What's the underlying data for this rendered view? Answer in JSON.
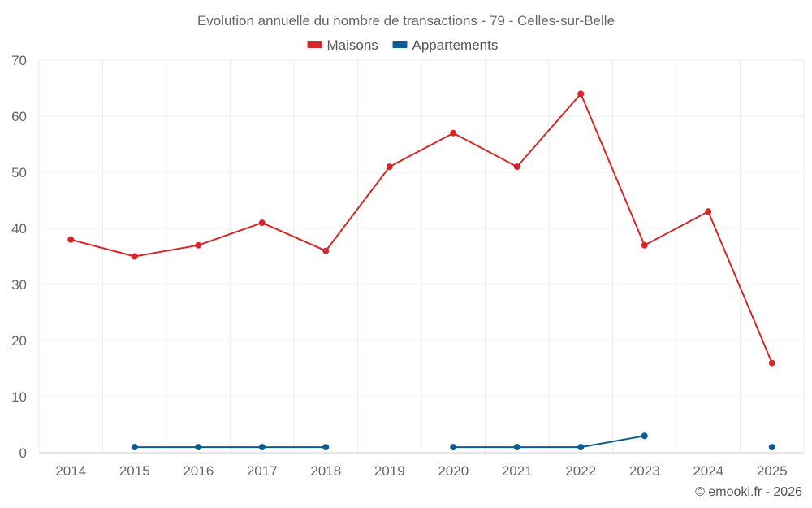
{
  "chart_data": {
    "type": "line",
    "title": "Evolution annuelle du nombre de transactions - 79 - Celles-sur-Belle",
    "categories": [
      "2014",
      "2015",
      "2016",
      "2017",
      "2018",
      "2019",
      "2020",
      "2021",
      "2022",
      "2023",
      "2024",
      "2025"
    ],
    "series": [
      {
        "name": "Maisons",
        "color": "#d62728",
        "values": [
          38,
          35,
          37,
          41,
          36,
          51,
          57,
          51,
          64,
          37,
          43,
          16
        ]
      },
      {
        "name": "Appartements",
        "color": "#0b5c92",
        "values": [
          null,
          1,
          1,
          1,
          1,
          null,
          1,
          1,
          1,
          3,
          null,
          1
        ]
      }
    ],
    "ylim": [
      0,
      70
    ],
    "yticks": [
      0,
      10,
      20,
      30,
      40,
      50,
      60,
      70
    ],
    "grid": true,
    "legend": "top-center",
    "xlabel": "",
    "ylabel": ""
  },
  "credit": "© emooki.fr - 2026"
}
